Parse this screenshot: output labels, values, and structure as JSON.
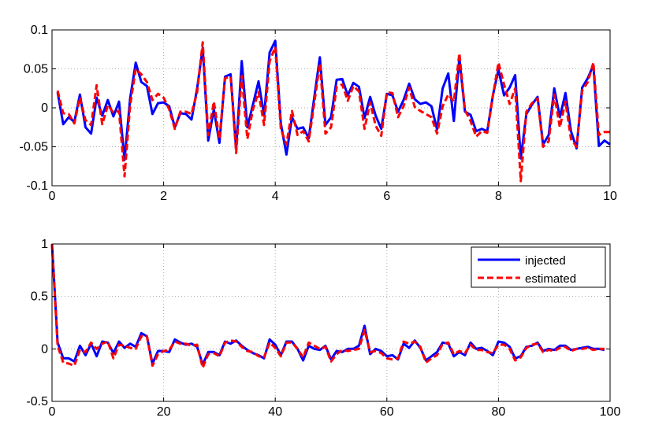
{
  "chart_data": [
    {
      "type": "line",
      "xlim": [
        0,
        10
      ],
      "ylim": [
        -0.1,
        0.1
      ],
      "xticks": [
        0,
        2,
        4,
        6,
        8,
        10
      ],
      "yticks": [
        0.1,
        0.05,
        0,
        -0.05,
        -0.1
      ],
      "xtick_labels": [
        "0",
        "2",
        "4",
        "6",
        "8",
        "10"
      ],
      "ytick_labels": [
        "0.1",
        "0.05",
        "0",
        "-0.05",
        "-0.1"
      ],
      "grid": true,
      "series": [
        {
          "color": "#0000ff",
          "style": "solid",
          "x": [
            0.1,
            0.2,
            0.3,
            0.4,
            0.5,
            0.6,
            0.7,
            0.8,
            0.9,
            1.0,
            1.1,
            1.2,
            1.3,
            1.4,
            1.5,
            1.6,
            1.7,
            1.8,
            1.9,
            2.0,
            2.1,
            2.2,
            2.3,
            2.4,
            2.5,
            2.6,
            2.7,
            2.8,
            2.9,
            3.0,
            3.1,
            3.2,
            3.3,
            3.4,
            3.5,
            3.6,
            3.7,
            3.8,
            3.9,
            4.0,
            4.1,
            4.2,
            4.3,
            4.4,
            4.5,
            4.6,
            4.7,
            4.8,
            4.9,
            5.0,
            5.1,
            5.2,
            5.3,
            5.4,
            5.5,
            5.6,
            5.7,
            5.8,
            5.9,
            6.0,
            6.1,
            6.2,
            6.3,
            6.4,
            6.5,
            6.6,
            6.7,
            6.8,
            6.9,
            7.0,
            7.1,
            7.2,
            7.3,
            7.4,
            7.5,
            7.6,
            7.7,
            7.8,
            7.9,
            8.0,
            8.1,
            8.2,
            8.3,
            8.4,
            8.5,
            8.6,
            8.7,
            8.8,
            8.9,
            9.0,
            9.1,
            9.2,
            9.3,
            9.4,
            9.5,
            9.6,
            9.7,
            9.8,
            9.9,
            10.0
          ],
          "y": [
            0.02,
            -0.021,
            -0.012,
            -0.018,
            0.017,
            -0.025,
            -0.033,
            0.013,
            -0.01,
            0.01,
            -0.011,
            0.008,
            -0.067,
            0.012,
            0.058,
            0.033,
            0.028,
            -0.008,
            0.006,
            0.007,
            0.002,
            -0.025,
            -0.007,
            -0.008,
            -0.015,
            0.025,
            0.077,
            -0.042,
            -0.002,
            -0.045,
            0.04,
            0.043,
            -0.053,
            0.06,
            -0.025,
            0.004,
            0.034,
            -0.01,
            0.071,
            0.086,
            -0.02,
            -0.06,
            -0.012,
            -0.027,
            -0.025,
            -0.039,
            0.014,
            0.065,
            -0.022,
            -0.012,
            0.036,
            0.037,
            0.016,
            0.032,
            0.027,
            -0.013,
            0.014,
            -0.01,
            -0.027,
            0.018,
            0.016,
            -0.005,
            0.01,
            0.031,
            0.011,
            0.005,
            0.007,
            0.002,
            -0.028,
            0.025,
            0.044,
            -0.017,
            0.064,
            -0.005,
            -0.009,
            -0.03,
            -0.027,
            -0.03,
            0.016,
            0.049,
            0.016,
            0.026,
            0.042,
            -0.065,
            -0.008,
            0.004,
            0.014,
            -0.047,
            -0.035,
            0.025,
            -0.012,
            0.019,
            -0.03,
            -0.052,
            0.026,
            0.038,
            0.055,
            -0.049,
            -0.042,
            -0.047
          ]
        },
        {
          "color": "#ff0000",
          "style": "dashed",
          "x": [
            0.1,
            0.2,
            0.3,
            0.4,
            0.5,
            0.6,
            0.7,
            0.8,
            0.9,
            1.0,
            1.1,
            1.2,
            1.3,
            1.4,
            1.5,
            1.6,
            1.7,
            1.8,
            1.9,
            2.0,
            2.1,
            2.2,
            2.3,
            2.4,
            2.5,
            2.6,
            2.7,
            2.8,
            2.9,
            3.0,
            3.1,
            3.2,
            3.3,
            3.4,
            3.5,
            3.6,
            3.7,
            3.8,
            3.9,
            4.0,
            4.1,
            4.2,
            4.3,
            4.4,
            4.5,
            4.6,
            4.7,
            4.8,
            4.9,
            5.0,
            5.1,
            5.2,
            5.3,
            5.4,
            5.5,
            5.6,
            5.7,
            5.8,
            5.9,
            6.0,
            6.1,
            6.2,
            6.3,
            6.4,
            6.5,
            6.6,
            6.7,
            6.8,
            6.9,
            7.0,
            7.1,
            7.2,
            7.3,
            7.4,
            7.5,
            7.6,
            7.7,
            7.8,
            7.9,
            8.0,
            8.1,
            8.2,
            8.3,
            8.4,
            8.5,
            8.6,
            8.7,
            8.8,
            8.9,
            9.0,
            9.1,
            9.2,
            9.3,
            9.4,
            9.5,
            9.6,
            9.7,
            9.8,
            9.9,
            10.0
          ],
          "y": [
            0.022,
            -0.007,
            -0.008,
            -0.02,
            0.013,
            -0.016,
            -0.022,
            0.029,
            -0.021,
            0.003,
            -0.006,
            -0.004,
            -0.088,
            0.003,
            0.05,
            0.043,
            0.033,
            0.01,
            0.018,
            0.013,
            -0.002,
            -0.027,
            -0.005,
            -0.005,
            -0.008,
            0.02,
            0.084,
            -0.035,
            0.008,
            -0.04,
            0.038,
            0.04,
            -0.058,
            0.041,
            -0.04,
            -0.002,
            0.02,
            -0.022,
            0.06,
            0.078,
            -0.027,
            -0.047,
            -0.004,
            -0.035,
            -0.03,
            -0.043,
            0.007,
            0.057,
            -0.033,
            -0.025,
            0.027,
            0.03,
            0.009,
            0.028,
            0.021,
            -0.027,
            0.007,
            -0.023,
            -0.036,
            0.02,
            0.019,
            -0.012,
            0.002,
            0.026,
            0.001,
            -0.004,
            -0.008,
            -0.012,
            -0.033,
            0.002,
            0.017,
            0.008,
            0.07,
            -0.003,
            -0.017,
            -0.037,
            -0.03,
            -0.032,
            0.015,
            0.058,
            0.03,
            0.005,
            0.025,
            -0.094,
            -0.005,
            0.006,
            0.012,
            -0.05,
            -0.043,
            0.017,
            -0.025,
            0.008,
            -0.04,
            -0.05,
            0.022,
            0.033,
            0.058,
            -0.035,
            -0.031,
            -0.031
          ]
        }
      ]
    },
    {
      "type": "line",
      "xlim": [
        0,
        100
      ],
      "ylim": [
        -0.5,
        1
      ],
      "xticks": [
        0,
        20,
        40,
        60,
        80,
        100
      ],
      "yticks": [
        1,
        0.5,
        0,
        -0.5
      ],
      "xtick_labels": [
        "0",
        "20",
        "40",
        "60",
        "80",
        "100"
      ],
      "ytick_labels": [
        "1",
        "0.5",
        "0",
        "-0.5"
      ],
      "grid": true,
      "legend": {
        "placement": "top-right",
        "entries": [
          "injected",
          "estimated"
        ]
      },
      "series": [
        {
          "name": "injected",
          "color": "#0000ff",
          "style": "solid",
          "x": [
            0,
            1,
            2,
            3,
            4,
            5,
            6,
            7,
            8,
            9,
            10,
            11,
            12,
            13,
            14,
            15,
            16,
            17,
            18,
            19,
            20,
            21,
            22,
            23,
            24,
            25,
            26,
            27,
            28,
            29,
            30,
            31,
            32,
            33,
            34,
            35,
            36,
            37,
            38,
            39,
            40,
            41,
            42,
            43,
            44,
            45,
            46,
            47,
            48,
            49,
            50,
            51,
            52,
            53,
            54,
            55,
            56,
            57,
            58,
            59,
            60,
            61,
            62,
            63,
            64,
            65,
            66,
            67,
            68,
            69,
            70,
            71,
            72,
            73,
            74,
            75,
            76,
            77,
            78,
            79,
            80,
            81,
            82,
            83,
            84,
            85,
            86,
            87,
            88,
            89,
            90,
            91,
            92,
            93,
            94,
            95,
            96,
            97,
            98,
            99
          ],
          "y": [
            1.0,
            0.06,
            -0.09,
            -0.09,
            -0.12,
            0.03,
            -0.06,
            0.05,
            -0.07,
            0.07,
            0.06,
            -0.04,
            0.07,
            0.01,
            0.05,
            0.02,
            0.15,
            0.12,
            -0.14,
            -0.02,
            -0.02,
            -0.03,
            0.09,
            0.06,
            0.04,
            0.05,
            0.02,
            -0.15,
            -0.03,
            -0.03,
            -0.06,
            0.07,
            0.05,
            0.08,
            0.03,
            -0.01,
            -0.04,
            -0.06,
            -0.09,
            0.09,
            0.04,
            -0.06,
            0.07,
            0.07,
            0.0,
            -0.11,
            0.03,
            0.0,
            -0.01,
            0.03,
            -0.1,
            -0.02,
            -0.03,
            0.0,
            0.0,
            0.03,
            0.22,
            -0.05,
            0.0,
            -0.02,
            -0.07,
            -0.06,
            -0.1,
            0.05,
            0.01,
            0.08,
            0.01,
            -0.11,
            -0.07,
            -0.03,
            0.06,
            0.05,
            -0.07,
            -0.03,
            -0.06,
            0.06,
            0.0,
            0.01,
            -0.02,
            -0.06,
            0.07,
            0.06,
            0.02,
            -0.09,
            -0.07,
            0.02,
            0.03,
            0.06,
            -0.02,
            0.0,
            -0.01,
            0.03,
            0.03,
            -0.01,
            0.0,
            0.01,
            0.02,
            0.0,
            0.0,
            -0.01
          ]
        },
        {
          "name": "estimated",
          "color": "#ff0000",
          "style": "dashed",
          "x": [
            0,
            1,
            2,
            3,
            4,
            5,
            6,
            7,
            8,
            9,
            10,
            11,
            12,
            13,
            14,
            15,
            16,
            17,
            18,
            19,
            20,
            21,
            22,
            23,
            24,
            25,
            26,
            27,
            28,
            29,
            30,
            31,
            32,
            33,
            34,
            35,
            36,
            37,
            38,
            39,
            40,
            41,
            42,
            43,
            44,
            45,
            46,
            47,
            48,
            49,
            50,
            51,
            52,
            53,
            54,
            55,
            56,
            57,
            58,
            59,
            60,
            61,
            62,
            63,
            64,
            65,
            66,
            67,
            68,
            69,
            70,
            71,
            72,
            73,
            74,
            75,
            76,
            77,
            78,
            79,
            80,
            81,
            82,
            83,
            84,
            85,
            86,
            87,
            88,
            89,
            90,
            91,
            92,
            93,
            94,
            95,
            96,
            97,
            98,
            99
          ],
          "y": [
            1.0,
            0.03,
            -0.13,
            -0.14,
            -0.16,
            -0.01,
            -0.03,
            0.06,
            0.0,
            0.05,
            0.07,
            -0.09,
            0.04,
            0.03,
            0.01,
            0.0,
            0.12,
            0.12,
            -0.16,
            -0.05,
            -0.02,
            -0.01,
            0.07,
            0.05,
            0.05,
            0.03,
            0.04,
            -0.18,
            -0.05,
            -0.04,
            -0.07,
            0.06,
            0.08,
            0.07,
            0.02,
            -0.02,
            -0.03,
            -0.07,
            -0.08,
            0.06,
            0.01,
            -0.07,
            0.06,
            0.06,
            0.0,
            -0.08,
            0.06,
            0.03,
            0.0,
            0.02,
            -0.12,
            -0.05,
            -0.01,
            -0.02,
            -0.01,
            0.0,
            0.18,
            -0.03,
            -0.02,
            -0.04,
            -0.09,
            -0.1,
            -0.09,
            0.07,
            0.05,
            0.07,
            0.02,
            -0.13,
            -0.09,
            -0.06,
            0.05,
            0.06,
            -0.05,
            -0.02,
            -0.04,
            0.04,
            -0.01,
            -0.01,
            -0.03,
            -0.04,
            0.04,
            0.04,
            0.0,
            -0.11,
            -0.08,
            0.01,
            0.04,
            0.05,
            -0.03,
            -0.01,
            -0.02,
            0.01,
            0.02,
            -0.02,
            0.0,
            0.0,
            0.01,
            -0.01,
            0.0,
            0.0
          ]
        }
      ]
    }
  ]
}
